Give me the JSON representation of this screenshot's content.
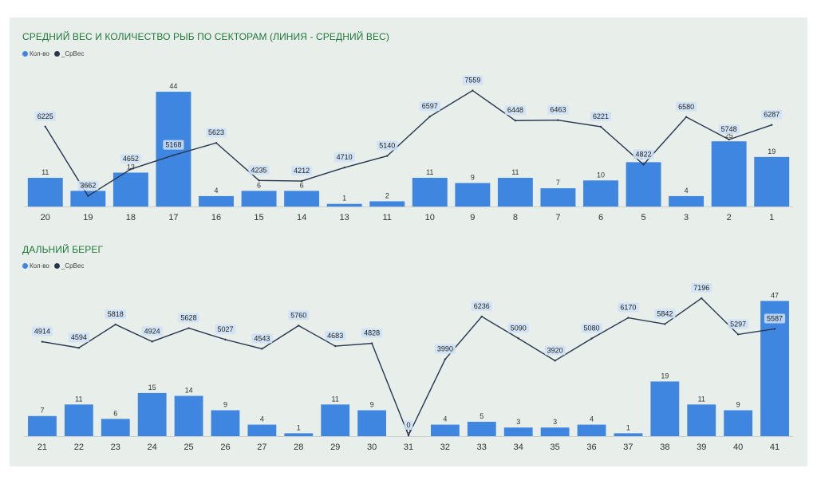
{
  "colors": {
    "bar": "#3f86e0",
    "line": "#27364f",
    "title": "#1f7a3a",
    "label_box": "#cde0f7"
  },
  "chart_data": [
    {
      "type": "bar",
      "title": "СРЕДНИЙ ВЕС И КОЛИЧЕСТВО РЫБ ПО СЕКТОРАМ (ЛИНИЯ  - СРЕДНИЙ ВЕС)",
      "legend": [
        "Кол-во",
        "_СрВес"
      ],
      "categories": [
        "20",
        "19",
        "18",
        "17",
        "16",
        "15",
        "14",
        "13",
        "11",
        "10",
        "9",
        "8",
        "7",
        "6",
        "5",
        "3",
        "2",
        "1"
      ],
      "series": [
        {
          "name": "Кол-во",
          "type": "bar",
          "values": [
            11,
            6,
            13,
            44,
            4,
            6,
            6,
            1,
            2,
            11,
            9,
            11,
            7,
            10,
            17,
            4,
            25,
            19
          ]
        },
        {
          "name": "_СрВес",
          "type": "line",
          "values": [
            6225,
            3662,
            4652,
            5168,
            5623,
            4235,
            4212,
            4710,
            5140,
            6597,
            7559,
            6448,
            6463,
            6221,
            4822,
            6580,
            5748,
            6287
          ]
        }
      ],
      "bar_ylim": [
        0,
        48
      ],
      "line_ylim": [
        3300,
        7900
      ]
    },
    {
      "type": "bar",
      "title": "ДАЛЬНИЙ БЕРЕГ",
      "legend": [
        "Кол-во",
        "_СрВес"
      ],
      "categories": [
        "21",
        "22",
        "23",
        "24",
        "25",
        "26",
        "27",
        "28",
        "29",
        "30",
        "31",
        "32",
        "33",
        "34",
        "35",
        "36",
        "37",
        "38",
        "39",
        "40",
        "41"
      ],
      "series": [
        {
          "name": "Кол-во",
          "type": "bar",
          "values": [
            7,
            11,
            6,
            15,
            14,
            9,
            4,
            1,
            11,
            9,
            0,
            4,
            5,
            3,
            3,
            4,
            1,
            19,
            11,
            9,
            47
          ]
        },
        {
          "name": "_СрВес",
          "type": "line",
          "values": [
            4914,
            4594,
            5818,
            4924,
            5628,
            5027,
            4543,
            5760,
            4683,
            4828,
            0,
            3990,
            6236,
            5090,
            3920,
            5080,
            6170,
            5842,
            7196,
            5297,
            5587
          ]
        }
      ],
      "bar_ylim": [
        0,
        51
      ],
      "line_ylim": [
        0,
        7700
      ]
    }
  ]
}
